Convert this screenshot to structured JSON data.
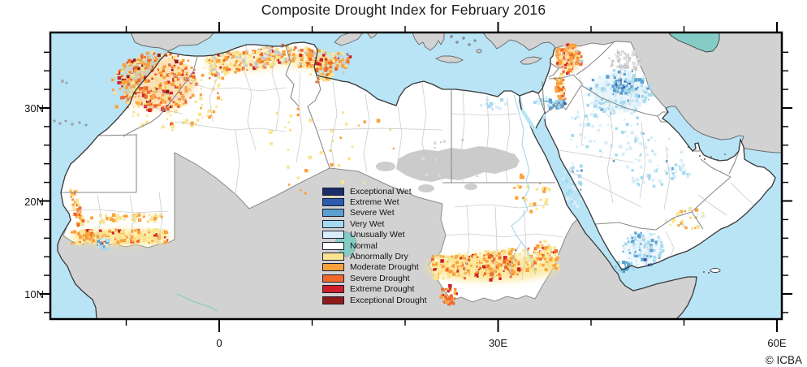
{
  "title": "Composite Drought Index for February 2016",
  "attribution": "© ICBA",
  "legend": {
    "items": [
      {
        "label": "Exceptional Wet",
        "color": "#1c2e6a"
      },
      {
        "label": "Extreme Wet",
        "color": "#2b5cab"
      },
      {
        "label": "Severe Wet",
        "color": "#5ba0d0"
      },
      {
        "label": "Very Wet",
        "color": "#a5d9ef"
      },
      {
        "label": "Unusually Wet",
        "color": "#d8eef8"
      },
      {
        "label": "Normal",
        "color": "#ffffff"
      },
      {
        "label": "Abnormally Dry",
        "color": "#fbe48e"
      },
      {
        "label": "Moderate Drought",
        "color": "#f9a23c"
      },
      {
        "label": "Severe Drought",
        "color": "#f0692a"
      },
      {
        "label": "Extreme Drought",
        "color": "#cd2028"
      },
      {
        "label": "Exceptional Drought",
        "color": "#8e1b1a"
      }
    ]
  },
  "axes": {
    "lat_ticks": [
      {
        "label": "30N",
        "value": 30
      },
      {
        "label": "20N",
        "value": 20
      },
      {
        "label": "10N",
        "value": 10
      }
    ],
    "lon_ticks": [
      {
        "label": "0",
        "value": 0
      },
      {
        "label": "30E",
        "value": 30
      },
      {
        "label": "60E",
        "value": 60
      }
    ]
  },
  "map": {
    "colors": {
      "ocean": "#b9e4f6",
      "land_no_data": "#d2d2d2",
      "land_data": "#ffffff",
      "lake": "#85ccc6",
      "missing_data_overlay": "#c8c8c8",
      "frame": "#000000"
    }
  }
}
